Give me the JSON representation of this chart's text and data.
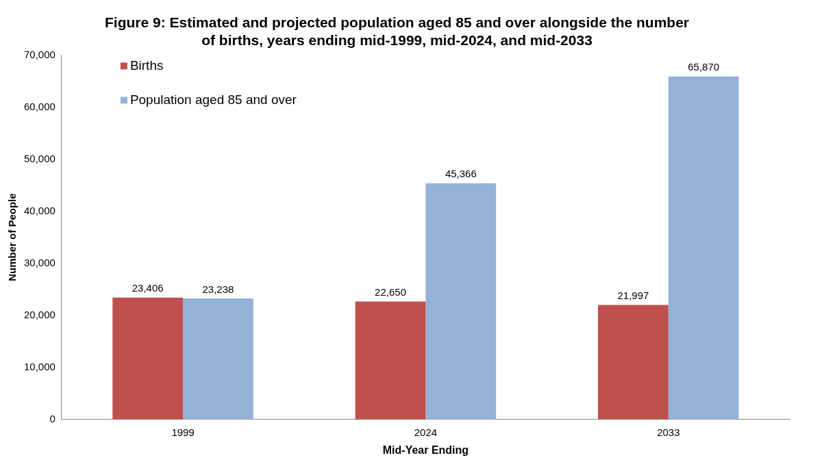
{
  "chart_data": {
    "type": "bar",
    "title": "Figure 9: Estimated and projected population aged 85 and over alongside the number of births, years ending mid-1999, mid-2024, and mid-2033",
    "xlabel": "Mid-Year Ending",
    "ylabel": "Number of People",
    "categories": [
      "1999",
      "2024",
      "2033"
    ],
    "series": [
      {
        "name": "Births",
        "color": "#c0504d",
        "values": [
          23406,
          22650,
          21997
        ],
        "value_labels": [
          "23,406",
          "22,650",
          "21,997"
        ]
      },
      {
        "name": "Population aged 85 and over",
        "color": "#95b3d7",
        "values": [
          23238,
          45366,
          65870
        ],
        "value_labels": [
          "23,238",
          "45,366",
          "65,870"
        ]
      }
    ],
    "ylim": [
      0,
      70000
    ],
    "yticks": [
      {
        "value": 0,
        "label": "0"
      },
      {
        "value": 10000,
        "label": "10,000"
      },
      {
        "value": 20000,
        "label": "20,000"
      },
      {
        "value": 30000,
        "label": "30,000"
      },
      {
        "value": 40000,
        "label": "40,000"
      },
      {
        "value": 50000,
        "label": "50,000"
      },
      {
        "value": 60000,
        "label": "60,000"
      },
      {
        "value": 70000,
        "label": "70,000"
      }
    ],
    "grid": false,
    "legend": "top left"
  }
}
